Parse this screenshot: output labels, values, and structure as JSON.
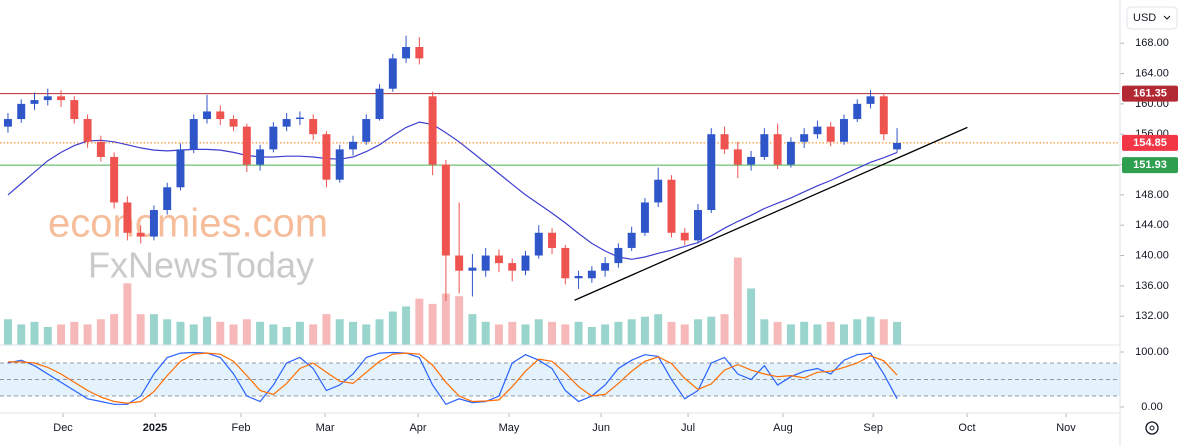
{
  "chart_data": {
    "type": "candlestick",
    "currency": "USD",
    "watermark": [
      "economies.com",
      "FxNewsToday"
    ],
    "up_color": "#2f56c9",
    "down_color": "#ef5350",
    "candles": [
      [
        157,
        158.8,
        156.2,
        158
      ],
      [
        158,
        160.6,
        157.5,
        160
      ],
      [
        160,
        161.5,
        159.2,
        160.5
      ],
      [
        160.5,
        162,
        159.8,
        161
      ],
      [
        161,
        161.8,
        159.6,
        160.5
      ],
      [
        160.5,
        161,
        157.4,
        158
      ],
      [
        158,
        158.6,
        154.2,
        155
      ],
      [
        155,
        155.8,
        152.4,
        153
      ],
      [
        153,
        153.6,
        146.2,
        147
      ],
      [
        147,
        147.8,
        142,
        143
      ],
      [
        143,
        144,
        141.6,
        142.5
      ],
      [
        142.5,
        146.6,
        142,
        146
      ],
      [
        146,
        149.6,
        145.4,
        149
      ],
      [
        149,
        154.8,
        148.6,
        154
      ],
      [
        154,
        158.6,
        153.5,
        158
      ],
      [
        158,
        161.2,
        157.4,
        159
      ],
      [
        159,
        159.8,
        157.2,
        158
      ],
      [
        158,
        158.5,
        156.4,
        157
      ],
      [
        157,
        157.4,
        151,
        152
      ],
      [
        152,
        154.6,
        151.2,
        154
      ],
      [
        154,
        157.6,
        153.6,
        157
      ],
      [
        157,
        158.8,
        156.4,
        158
      ],
      [
        158,
        159,
        157.2,
        158.2
      ],
      [
        158,
        158.6,
        155.2,
        156
      ],
      [
        156,
        156.4,
        149,
        150
      ],
      [
        150,
        154.6,
        149.6,
        154
      ],
      [
        154,
        155.8,
        153.2,
        155
      ],
      [
        155,
        158.6,
        154.6,
        158
      ],
      [
        158,
        162.6,
        157.8,
        162
      ],
      [
        162,
        166.6,
        161.6,
        166
      ],
      [
        166,
        169,
        165.4,
        167.5
      ],
      [
        167.5,
        168.8,
        165.2,
        166
      ],
      [
        161,
        161.6,
        150.6,
        152
      ],
      [
        152,
        152.6,
        134,
        140
      ],
      [
        140,
        147,
        135,
        138
      ],
      [
        138,
        140.2,
        134.6,
        138.4
      ],
      [
        138,
        141,
        137.2,
        140
      ],
      [
        140,
        140.8,
        137.8,
        139
      ],
      [
        139,
        139.6,
        136.6,
        138
      ],
      [
        138,
        140.6,
        137.4,
        140
      ],
      [
        140,
        144,
        139.6,
        143
      ],
      [
        143,
        143.6,
        140.2,
        141
      ],
      [
        141,
        141.4,
        136.2,
        137
      ],
      [
        137,
        138,
        135.6,
        137.3
      ],
      [
        137,
        138.6,
        136.4,
        138
      ],
      [
        138,
        139.8,
        137.2,
        139
      ],
      [
        139,
        141.6,
        138.4,
        141
      ],
      [
        141,
        143.8,
        140.6,
        143
      ],
      [
        143,
        147.6,
        142.6,
        147
      ],
      [
        147,
        151.6,
        146.4,
        150
      ],
      [
        150,
        150.6,
        142.4,
        143
      ],
      [
        143,
        143.6,
        141.4,
        142
      ],
      [
        142,
        146.8,
        141.6,
        146
      ],
      [
        146,
        156.8,
        145.6,
        156
      ],
      [
        156,
        157,
        153.4,
        154
      ],
      [
        154,
        155,
        150.2,
        152
      ],
      [
        152,
        153.8,
        151.2,
        153
      ],
      [
        153,
        156.8,
        152.6,
        156
      ],
      [
        156,
        157.4,
        151.4,
        152
      ],
      [
        152,
        155.6,
        151.6,
        155
      ],
      [
        155,
        156.8,
        154.2,
        156
      ],
      [
        156,
        157.8,
        155.4,
        157
      ],
      [
        157,
        157.6,
        154.4,
        155
      ],
      [
        155,
        158.6,
        154.6,
        158
      ],
      [
        158,
        160.6,
        157.6,
        160
      ],
      [
        160,
        161.8,
        159.4,
        161
      ],
      [
        161,
        161.4,
        155.2,
        156
      ],
      [
        154,
        156.8,
        153.6,
        154.85
      ]
    ],
    "volume": [
      10,
      8,
      9,
      7,
      8,
      9,
      8,
      10,
      12,
      24,
      12,
      12,
      10,
      9,
      8,
      11,
      9,
      8,
      10,
      9,
      8,
      7,
      9,
      8,
      12,
      10,
      9,
      8,
      10,
      13,
      15,
      18,
      16,
      20,
      19,
      12,
      9,
      8,
      9,
      8,
      10,
      9,
      8,
      9,
      7,
      8,
      9,
      10,
      11,
      12,
      9,
      8,
      10,
      11,
      12,
      34,
      22,
      10,
      9,
      8,
      9,
      8,
      9,
      8,
      10,
      11,
      10,
      9
    ],
    "vlim": [
      0,
      35
    ],
    "ma": {
      "color": "#3f3fd0",
      "values": [
        148,
        149.5,
        151,
        152.5,
        153.6,
        154.5,
        155.1,
        155.2,
        155,
        154.6,
        154.2,
        153.9,
        153.8,
        153.9,
        154,
        154,
        153.9,
        153.6,
        153.2,
        153,
        153,
        153.1,
        153.1,
        153,
        152.8,
        152.7,
        153,
        153.7,
        154.6,
        155.8,
        156.9,
        157.6,
        157.3,
        156.2,
        155,
        153.6,
        152.2,
        150.8,
        149.4,
        148,
        146.8,
        145.6,
        144.3,
        142.9,
        141.6,
        140.6,
        139.8,
        139.5,
        139.8,
        140.3,
        140.7,
        141.2,
        141.7,
        142.6,
        143.6,
        144.5,
        145.3,
        146.2,
        146.9,
        147.6,
        148.4,
        149.2,
        149.9,
        150.7,
        151.5,
        152.3,
        152.9,
        153.6
      ]
    },
    "trendline": {
      "color": "#000000",
      "x": [
        42.7,
        72.3
      ],
      "y": [
        134.1,
        156.9
      ]
    },
    "levels": [
      {
        "value": 161.35,
        "color": "#b22833",
        "label_color": "#b22833",
        "style": "solid"
      },
      {
        "value": 154.85,
        "color": "#f57c00",
        "label_color": "#f23645",
        "style": "dotted"
      },
      {
        "value": 151.93,
        "color": "#4caf50",
        "label_color": "#2e9e4f",
        "style": "solid"
      }
    ],
    "xlim": [
      -0.6,
      83.8
    ],
    "xticks": [
      {
        "value": 4.15,
        "label": "Dec"
      },
      {
        "value": 11.08,
        "label": "2025"
      },
      {
        "value": 17.56,
        "label": "Feb"
      },
      {
        "value": 23.9,
        "label": "Mar"
      },
      {
        "value": 30.9,
        "label": "Apr"
      },
      {
        "value": 37.76,
        "label": "May"
      },
      {
        "value": 44.7,
        "label": "Jun"
      },
      {
        "value": 51.25,
        "label": "Jul"
      },
      {
        "value": 58.4,
        "label": "Aug"
      },
      {
        "value": 65.2,
        "label": "Sep"
      },
      {
        "value": 72.27,
        "label": "Oct"
      },
      {
        "value": 79.73,
        "label": "Nov"
      }
    ],
    "ylim": [
      128.2,
      173.7
    ],
    "yticks": [
      {
        "value": 132,
        "label": "132.00"
      },
      {
        "value": 136,
        "label": "136.00"
      },
      {
        "value": 140,
        "label": "140.00"
      },
      {
        "value": 144,
        "label": "144.00"
      },
      {
        "value": 148,
        "label": "148.00"
      },
      {
        "value": 152,
        "label": "152.00"
      },
      {
        "value": 156,
        "label": "156.00"
      },
      {
        "value": 160,
        "label": "160.00"
      },
      {
        "value": 164,
        "label": "164.00"
      },
      {
        "value": 168,
        "label": "168.00"
      }
    ],
    "stochastic": {
      "k": {
        "color": "#2962ff",
        "values": [
          80,
          85,
          75,
          60,
          45,
          30,
          15,
          10,
          5,
          5,
          20,
          60,
          90,
          98,
          99,
          98,
          90,
          60,
          20,
          10,
          40,
          80,
          90,
          70,
          30,
          40,
          60,
          90,
          98,
          99,
          98,
          90,
          40,
          5,
          15,
          8,
          10,
          20,
          80,
          95,
          85,
          70,
          30,
          10,
          20,
          40,
          70,
          85,
          95,
          92,
          50,
          15,
          30,
          80,
          90,
          60,
          50,
          75,
          40,
          55,
          65,
          70,
          60,
          85,
          95,
          98,
          60,
          15
        ]
      },
      "d": {
        "color": "#ff6d00",
        "values": [
          82,
          82,
          80,
          72,
          60,
          45,
          30,
          18,
          10,
          7,
          10,
          28,
          57,
          83,
          96,
          98,
          96,
          83,
          57,
          30,
          23,
          43,
          70,
          80,
          63,
          47,
          43,
          63,
          83,
          96,
          98,
          96,
          76,
          45,
          20,
          10,
          11,
          13,
          37,
          65,
          87,
          83,
          62,
          37,
          20,
          23,
          43,
          65,
          83,
          91,
          79,
          52,
          32,
          42,
          67,
          77,
          67,
          60,
          55,
          57,
          53,
          63,
          65,
          72,
          80,
          93,
          84,
          58
        ]
      },
      "ylim": [
        -23.6,
        112.7
      ],
      "yticks": [
        {
          "value": 0,
          "label": "0.00"
        },
        {
          "value": 100,
          "label": "100.00"
        }
      ],
      "band": [
        20,
        80
      ],
      "levels": [
        80,
        50,
        20
      ]
    }
  }
}
